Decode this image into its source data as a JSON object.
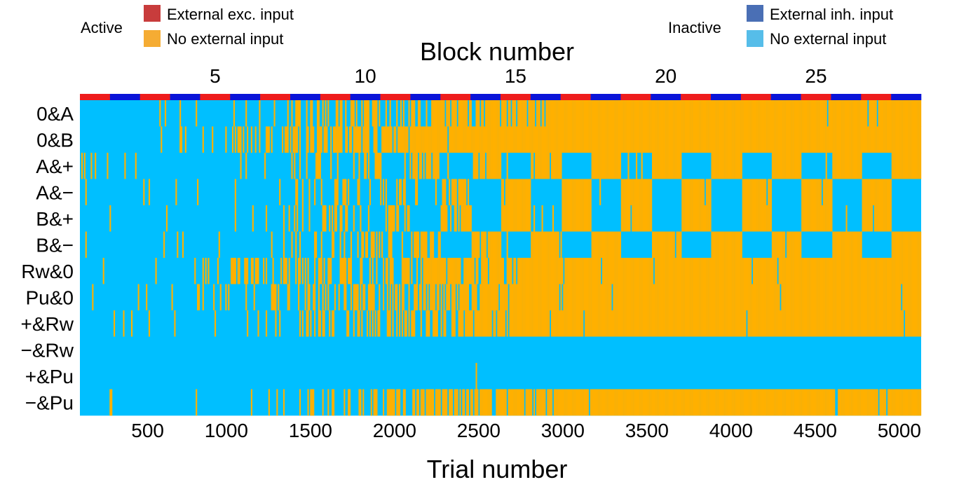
{
  "legend": {
    "active_title": "Active",
    "inactive_title": "Inactive",
    "items": [
      {
        "label": "External exc. input",
        "color": "#c83c3c"
      },
      {
        "label": "No external input",
        "color": "#f5ac33"
      },
      {
        "label": "External inh. input",
        "color": "#4a6fb5"
      },
      {
        "label": "No external input",
        "color": "#56bde9"
      }
    ]
  },
  "colors": {
    "active": "#ffb000",
    "inactive": "#00bfff",
    "exc_block": "#ee1c1c",
    "inh_block": "#0a14d8"
  },
  "chart_data": {
    "type": "heatmap",
    "top_axis_title": "Block number",
    "bottom_axis_title": "Trial number",
    "block_ticks": [
      5,
      10,
      15,
      20,
      25
    ],
    "block_range": [
      0.5,
      28.5
    ],
    "trial_ticks": [
      500,
      1000,
      1500,
      2000,
      2500,
      3000,
      3500,
      4000,
      4500,
      5000
    ],
    "trial_range": [
      0,
      5000
    ],
    "block_inputs": [
      "exc",
      "inh",
      "exc",
      "inh",
      "exc",
      "inh",
      "exc",
      "inh",
      "exc",
      "inh",
      "exc",
      "inh",
      "exc",
      "inh",
      "exc",
      "inh",
      "exc",
      "inh",
      "exc",
      "inh",
      "exc",
      "inh",
      "exc",
      "inh",
      "exc",
      "inh",
      "exc",
      "inh"
    ],
    "rows": [
      "0&A",
      "0&B",
      "A&+",
      "A&−",
      "B&+",
      "B&−",
      "Rw&0",
      "Pu&0",
      "+&Rw",
      "−&Rw",
      "+&Pu",
      "−&Pu"
    ],
    "row_patterns": [
      {
        "pattern": "converge",
        "start": 950,
        "end": 2800
      },
      {
        "pattern": "converge",
        "start": 700,
        "end": 2200
      },
      {
        "pattern": "alternate",
        "start": 1200,
        "end": 2600,
        "final_active_blocks": "inh"
      },
      {
        "pattern": "alternate",
        "start": 1200,
        "end": 2600,
        "final_active_blocks": "exc"
      },
      {
        "pattern": "alternate",
        "start": 1200,
        "end": 2600,
        "final_active_blocks": "exc"
      },
      {
        "pattern": "alternate",
        "start": 1200,
        "end": 2600,
        "final_active_blocks": "inh"
      },
      {
        "pattern": "converge",
        "start": 680,
        "end": 2650
      },
      {
        "pattern": "converge",
        "start": 690,
        "end": 2650
      },
      {
        "pattern": "converge",
        "start": 1100,
        "end": 2650
      },
      {
        "pattern": "inactive"
      },
      {
        "pattern": "inactive"
      },
      {
        "pattern": "converge",
        "start": 1150,
        "end": 2950
      }
    ]
  }
}
